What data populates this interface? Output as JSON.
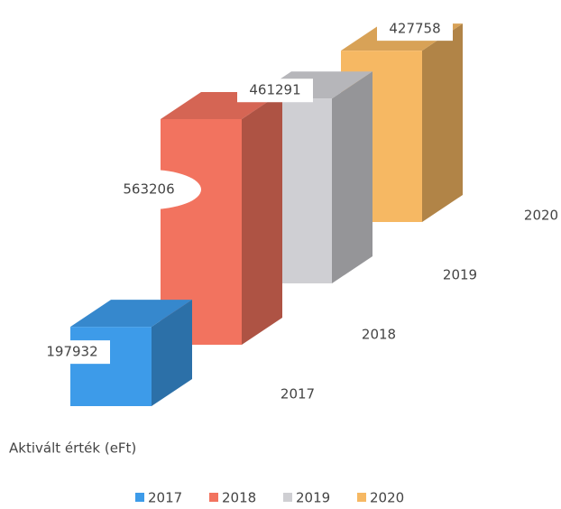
{
  "chart_data": {
    "type": "bar3d",
    "axis_label": "Aktivált érték (eFt)",
    "categories": [
      "2017",
      "2018",
      "2019",
      "2020"
    ],
    "values": [
      197932,
      563206,
      461291,
      427758
    ],
    "colors": [
      "#3d9be9",
      "#f2735f",
      "#cfcfd3",
      "#f6b863"
    ],
    "legend": [
      "2017",
      "2018",
      "2019",
      "2020"
    ]
  }
}
